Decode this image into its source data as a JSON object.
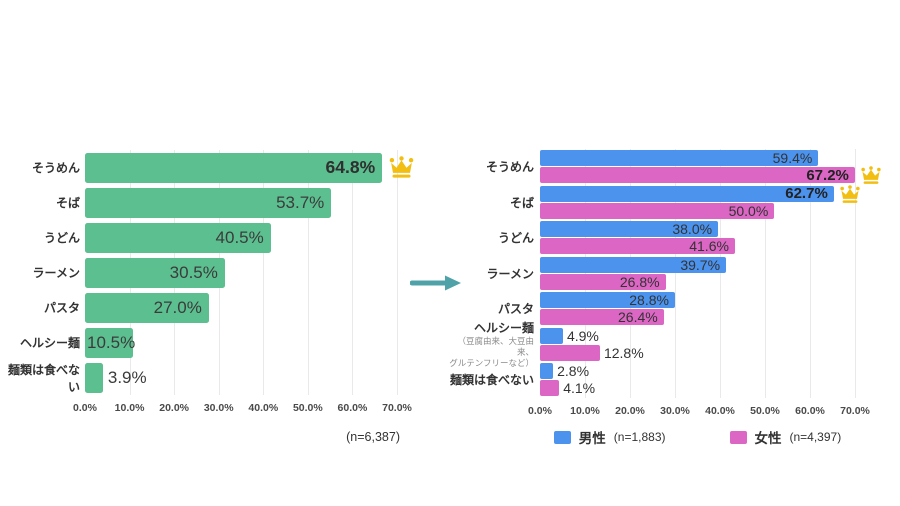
{
  "colors": {
    "overall_green": "#5cbf90",
    "male_blue": "#4c93ee",
    "female_pink": "#db66c3",
    "crown_gold": "#f2be12",
    "arrow_teal": "#4fa3a8",
    "grid_line": "#e9e9e9",
    "text_dark": "#333333",
    "subnote_gray": "#8a8a8a"
  },
  "icons": {
    "crown": "crown-icon",
    "arrow": "right-arrow-icon"
  },
  "chart_data": [
    {
      "type": "bar",
      "orientation": "horizontal",
      "title": "",
      "categories": [
        "そうめん",
        "そば",
        "うどん",
        "ラーメン",
        "パスタ",
        "ヘルシー麺",
        "麺類は食べない"
      ],
      "values": [
        64.8,
        53.7,
        40.5,
        30.5,
        27.0,
        10.5,
        3.9
      ],
      "value_labels": [
        "64.8%",
        "53.7%",
        "40.5%",
        "30.5%",
        "27.0%",
        "10.5%",
        "3.9%"
      ],
      "bar_color": "#5cbf90",
      "xlim": [
        0,
        70
      ],
      "ticks": [
        "0.0%",
        "10.0%",
        "20.0%",
        "30.0%",
        "40.0%",
        "50.0%",
        "60.0%",
        "70.0%"
      ],
      "grid": true,
      "note": "(n=6,387)",
      "crown_indices": [
        0
      ],
      "bold_indices": [
        0
      ],
      "legend_position": "none"
    },
    {
      "type": "bar",
      "orientation": "horizontal",
      "title": "",
      "categories": [
        "そうめん",
        "そば",
        "うどん",
        "ラーメン",
        "パスタ",
        "ヘルシー麺",
        "麺類は食べない"
      ],
      "category_sublabels": {
        "5": [
          "（豆腐由来、大豆由来、",
          "グルテンフリーなど）"
        ]
      },
      "series": [
        {
          "name": "男性",
          "sample_label": "(n=1,883)",
          "color": "#4c93ee",
          "values": [
            59.4,
            62.7,
            38.0,
            39.7,
            28.8,
            4.9,
            2.8
          ],
          "value_labels": [
            "59.4%",
            "62.7%",
            "38.0%",
            "39.7%",
            "28.8%",
            "4.9%",
            "2.8%"
          ]
        },
        {
          "name": "女性",
          "sample_label": "(n=4,397)",
          "color": "#db66c3",
          "values": [
            67.2,
            50.0,
            41.6,
            26.8,
            26.4,
            12.8,
            4.1
          ],
          "value_labels": [
            "67.2%",
            "50.0%",
            "41.6%",
            "26.8%",
            "26.4%",
            "12.8%",
            "4.1%"
          ]
        }
      ],
      "xlim": [
        0,
        70
      ],
      "ticks": [
        "0.0%",
        "10.0%",
        "20.0%",
        "30.0%",
        "40.0%",
        "50.0%",
        "60.0%",
        "70.0%"
      ],
      "grid": true,
      "crowns": [
        {
          "series": 1,
          "category": 0
        },
        {
          "series": 0,
          "category": 1
        }
      ],
      "bold": [
        {
          "series": 1,
          "category": 0
        },
        {
          "series": 0,
          "category": 1
        }
      ],
      "legend_position": "bottom"
    }
  ]
}
